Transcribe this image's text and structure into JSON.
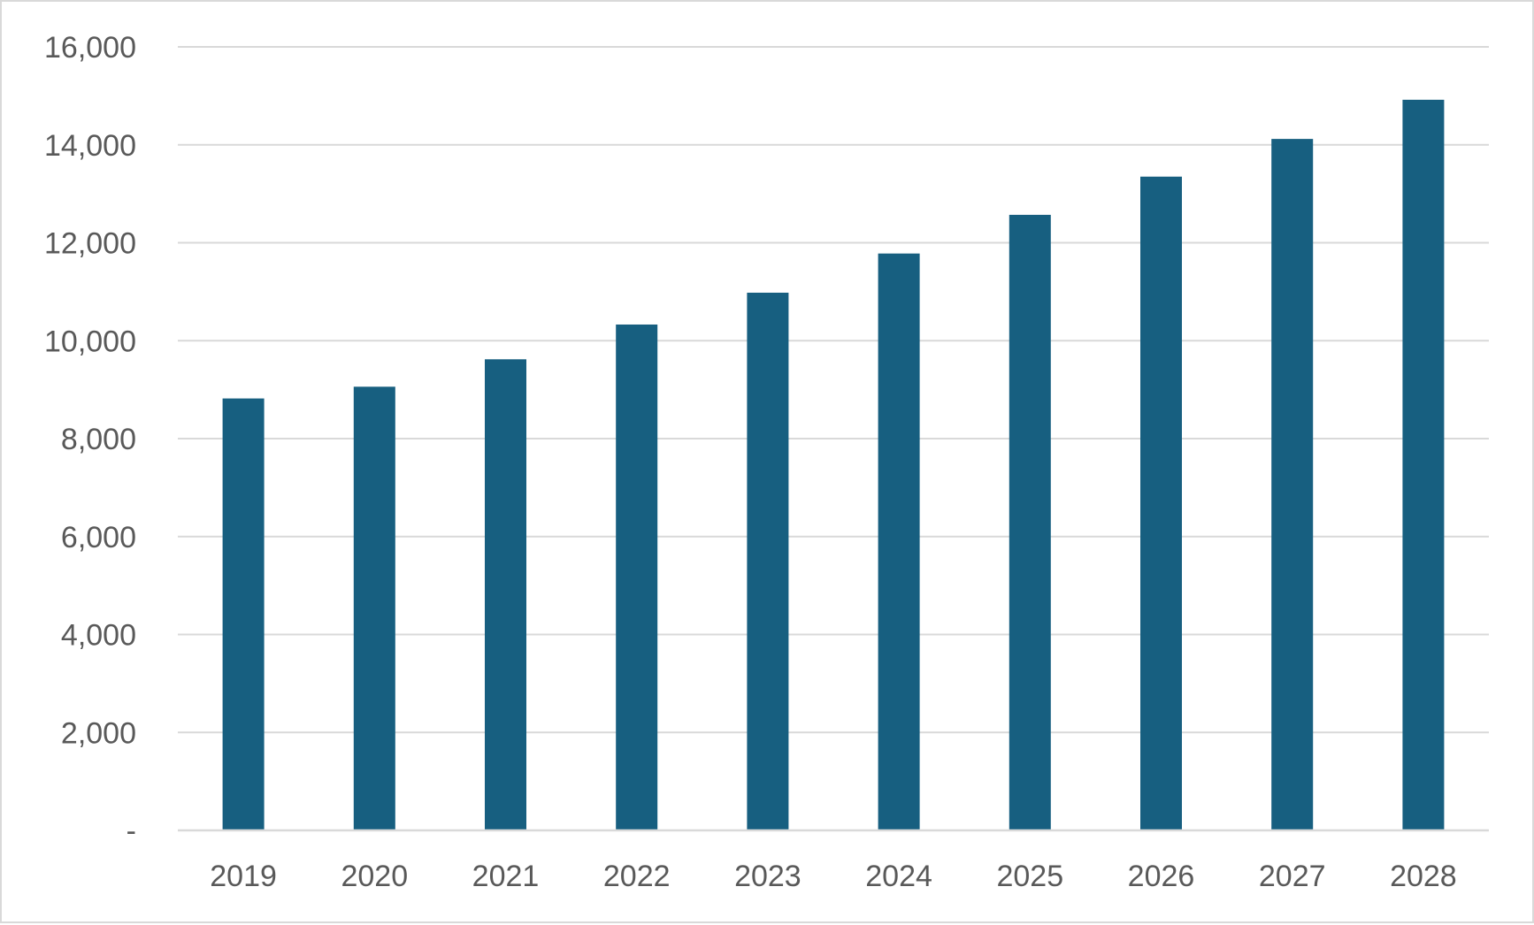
{
  "chart_data": {
    "type": "bar",
    "title": "",
    "xlabel": "",
    "ylabel": "",
    "categories": [
      "2019",
      "2020",
      "2021",
      "2022",
      "2023",
      "2024",
      "2025",
      "2026",
      "2027",
      "2028"
    ],
    "series": [
      {
        "values": [
          8820,
          9060,
          9620,
          10330,
          10980,
          11780,
          12570,
          13350,
          14120,
          14920
        ],
        "color": "#175f80"
      }
    ],
    "ylim": [
      0,
      16000
    ],
    "y_ticks": [
      {
        "value": 0,
        "label": "-"
      },
      {
        "value": 2000,
        "label": "2,000"
      },
      {
        "value": 4000,
        "label": "4,000"
      },
      {
        "value": 6000,
        "label": "6,000"
      },
      {
        "value": 8000,
        "label": "8,000"
      },
      {
        "value": 10000,
        "label": "10,000"
      },
      {
        "value": 12000,
        "label": "12,000"
      },
      {
        "value": 14000,
        "label": "14,000"
      },
      {
        "value": 16000,
        "label": "16,000"
      }
    ],
    "grid": true,
    "legend": "none"
  }
}
